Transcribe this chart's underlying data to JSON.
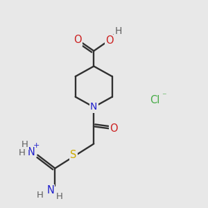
{
  "bg_color": "#e8e8e8",
  "atom_colors": {
    "C": "#303030",
    "N": "#2020cc",
    "O": "#cc2020",
    "S": "#ccaa00",
    "H": "#606060",
    "Cl": "#44aa44"
  },
  "figsize": [
    3.0,
    3.0
  ],
  "dpi": 100
}
